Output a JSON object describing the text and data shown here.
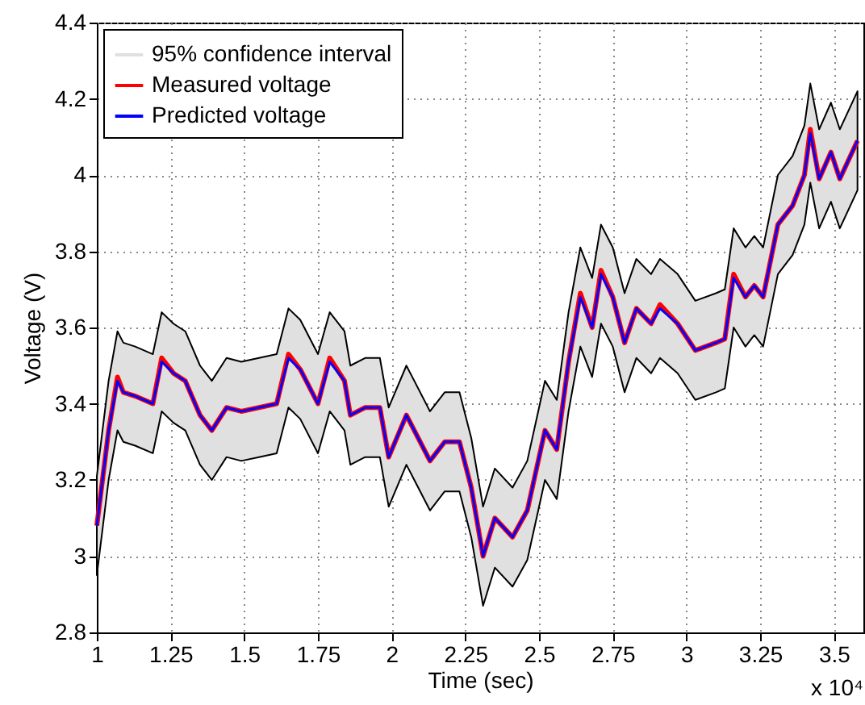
{
  "chart_data": {
    "type": "line",
    "xlabel": "Time (sec)",
    "ylabel": "Voltage (V)",
    "annotations": [
      "95% confidence interval",
      "x 10⁴"
    ],
    "x": [
      1.0,
      1.04,
      1.07,
      1.09,
      1.13,
      1.19,
      1.22,
      1.26,
      1.3,
      1.35,
      1.39,
      1.44,
      1.49,
      1.55,
      1.61,
      1.65,
      1.69,
      1.75,
      1.79,
      1.84,
      1.86,
      1.91,
      1.96,
      1.99,
      2.05,
      2.13,
      2.18,
      2.23,
      2.27,
      2.31,
      2.35,
      2.41,
      2.46,
      2.52,
      2.56,
      2.6,
      2.64,
      2.68,
      2.71,
      2.75,
      2.79,
      2.83,
      2.88,
      2.91,
      2.97,
      3.03,
      3.1,
      3.13,
      3.16,
      3.2,
      3.23,
      3.26,
      3.31,
      3.36,
      3.4,
      3.42,
      3.45,
      3.49,
      3.52,
      3.58
    ],
    "series": [
      {
        "name": "Measured voltage",
        "color": "#ff0000",
        "values": [
          3.08,
          3.33,
          3.47,
          3.43,
          3.42,
          3.4,
          3.52,
          3.48,
          3.46,
          3.37,
          3.33,
          3.39,
          3.38,
          3.39,
          3.4,
          3.53,
          3.49,
          3.4,
          3.52,
          3.46,
          3.37,
          3.39,
          3.39,
          3.26,
          3.37,
          3.25,
          3.3,
          3.3,
          3.18,
          3.0,
          3.1,
          3.05,
          3.12,
          3.33,
          3.28,
          3.51,
          3.69,
          3.6,
          3.75,
          3.68,
          3.56,
          3.65,
          3.61,
          3.66,
          3.61,
          3.54,
          3.56,
          3.57,
          3.74,
          3.68,
          3.71,
          3.68,
          3.87,
          3.92,
          4.0,
          4.12,
          3.99,
          4.06,
          3.99,
          4.09
        ]
      },
      {
        "name": "Predicted voltage",
        "color": "#0000ff",
        "values": [
          3.08,
          3.33,
          3.46,
          3.43,
          3.42,
          3.4,
          3.51,
          3.48,
          3.46,
          3.37,
          3.33,
          3.39,
          3.38,
          3.39,
          3.4,
          3.52,
          3.49,
          3.4,
          3.51,
          3.46,
          3.37,
          3.39,
          3.39,
          3.26,
          3.37,
          3.25,
          3.3,
          3.3,
          3.18,
          3.0,
          3.1,
          3.05,
          3.12,
          3.33,
          3.28,
          3.51,
          3.68,
          3.6,
          3.74,
          3.68,
          3.56,
          3.65,
          3.61,
          3.65,
          3.61,
          3.54,
          3.56,
          3.57,
          3.73,
          3.68,
          3.71,
          3.68,
          3.87,
          3.92,
          4.0,
          4.11,
          3.99,
          4.06,
          3.99,
          4.09
        ],
        "upper": [
          3.21,
          3.46,
          3.59,
          3.56,
          3.55,
          3.53,
          3.64,
          3.61,
          3.59,
          3.5,
          3.46,
          3.52,
          3.51,
          3.52,
          3.53,
          3.65,
          3.62,
          3.53,
          3.64,
          3.59,
          3.5,
          3.52,
          3.52,
          3.39,
          3.5,
          3.38,
          3.43,
          3.43,
          3.31,
          3.13,
          3.23,
          3.18,
          3.25,
          3.46,
          3.41,
          3.64,
          3.81,
          3.73,
          3.87,
          3.81,
          3.69,
          3.78,
          3.74,
          3.78,
          3.74,
          3.67,
          3.69,
          3.7,
          3.86,
          3.81,
          3.84,
          3.81,
          4.0,
          4.05,
          4.13,
          4.24,
          4.12,
          4.19,
          4.12,
          4.22
        ],
        "lower": [
          2.95,
          3.2,
          3.33,
          3.3,
          3.29,
          3.27,
          3.38,
          3.35,
          3.33,
          3.24,
          3.2,
          3.26,
          3.25,
          3.26,
          3.27,
          3.39,
          3.36,
          3.27,
          3.38,
          3.33,
          3.24,
          3.26,
          3.26,
          3.13,
          3.24,
          3.12,
          3.17,
          3.17,
          3.05,
          2.87,
          2.97,
          2.92,
          2.99,
          3.2,
          3.15,
          3.38,
          3.55,
          3.47,
          3.61,
          3.55,
          3.43,
          3.52,
          3.48,
          3.52,
          3.48,
          3.41,
          3.43,
          3.44,
          3.6,
          3.55,
          3.58,
          3.55,
          3.74,
          3.79,
          3.87,
          3.98,
          3.86,
          3.93,
          3.86,
          3.96
        ]
      }
    ],
    "xlim": [
      1,
      3.6
    ],
    "xticks": [
      1,
      1.25,
      1.5,
      1.75,
      2,
      2.25,
      2.5,
      2.75,
      3,
      3.25,
      3.5
    ],
    "ylim": [
      2.8,
      4.4
    ],
    "yticks": [
      2.8,
      3,
      3.2,
      3.4,
      3.6,
      3.8,
      4,
      4.2,
      4.4
    ],
    "grid": true,
    "legend": "top left",
    "line_style": "solid",
    "marker": "none"
  }
}
